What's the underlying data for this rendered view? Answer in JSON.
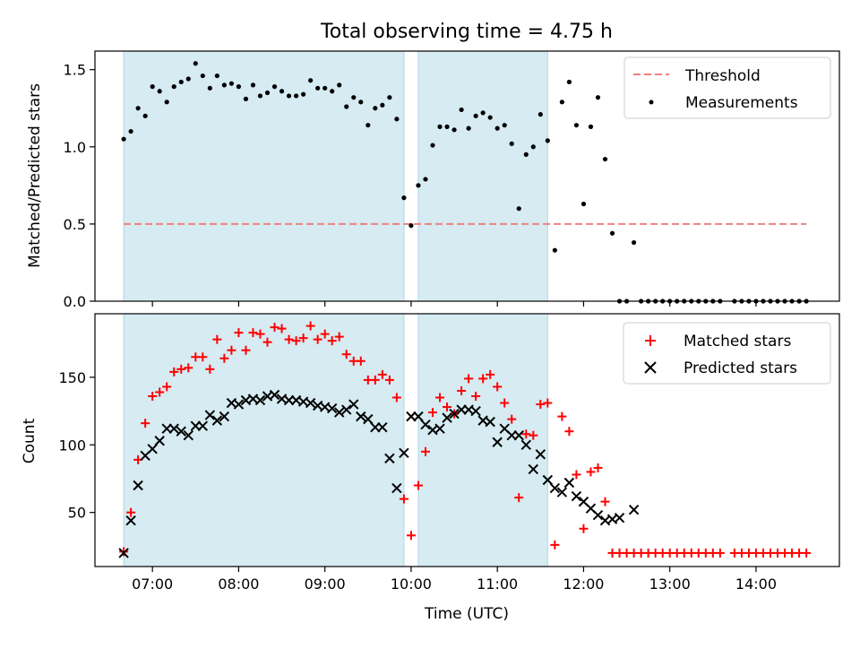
{
  "chart_data": [
    {
      "type": "scatter",
      "title": "Total observing time = 4.75 h",
      "ylabel": "Matched/Predicted stars",
      "xlim": [
        "06:20",
        "14:58"
      ],
      "ylim": [
        0,
        1.62
      ],
      "yticks": [
        0.0,
        0.5,
        1.0,
        1.5
      ],
      "ytick_labels": [
        "0.0",
        "0.5",
        "1.0",
        "1.5"
      ],
      "shaded_intervals": [
        [
          "06:40",
          "09:55"
        ],
        [
          "10:05",
          "11:35"
        ]
      ],
      "threshold": 0.5,
      "legend": [
        "Threshold",
        "Measurements"
      ],
      "legend_position": "upper right",
      "series": [
        {
          "name": "Measurements",
          "x": [
            "06:40",
            "06:45",
            "06:50",
            "06:55",
            "07:00",
            "07:05",
            "07:10",
            "07:15",
            "07:20",
            "07:25",
            "07:30",
            "07:35",
            "07:40",
            "07:45",
            "07:50",
            "07:55",
            "08:00",
            "08:05",
            "08:10",
            "08:15",
            "08:20",
            "08:25",
            "08:30",
            "08:35",
            "08:40",
            "08:45",
            "08:50",
            "08:55",
            "09:00",
            "09:05",
            "09:10",
            "09:15",
            "09:20",
            "09:25",
            "09:30",
            "09:35",
            "09:40",
            "09:45",
            "09:50",
            "09:55",
            "10:00",
            "10:05",
            "10:10",
            "10:15",
            "10:20",
            "10:25",
            "10:30",
            "10:35",
            "10:40",
            "10:45",
            "10:50",
            "10:55",
            "11:00",
            "11:05",
            "11:10",
            "11:15",
            "11:20",
            "11:25",
            "11:30",
            "11:35",
            "11:40",
            "11:45",
            "11:50",
            "11:55",
            "12:00",
            "12:05",
            "12:10",
            "12:15",
            "12:20",
            "12:25",
            "12:30",
            "12:35",
            "12:40",
            "12:45",
            "12:50",
            "12:55",
            "13:00",
            "13:05",
            "13:10",
            "13:15",
            "13:20",
            "13:25",
            "13:30",
            "13:35",
            "13:45",
            "13:50",
            "13:55",
            "14:00",
            "14:05",
            "14:10",
            "14:15",
            "14:20",
            "14:25",
            "14:30",
            "14:35"
          ],
          "y": [
            1.05,
            1.1,
            1.25,
            1.2,
            1.39,
            1.36,
            1.29,
            1.39,
            1.42,
            1.44,
            1.54,
            1.46,
            1.38,
            1.46,
            1.4,
            1.41,
            1.39,
            1.31,
            1.4,
            1.33,
            1.35,
            1.39,
            1.36,
            1.33,
            1.33,
            1.34,
            1.43,
            1.38,
            1.38,
            1.36,
            1.4,
            1.26,
            1.32,
            1.29,
            1.14,
            1.25,
            1.27,
            1.32,
            1.18,
            0.67,
            0.49,
            0.75,
            0.79,
            1.01,
            1.13,
            1.13,
            1.11,
            1.24,
            1.12,
            1.2,
            1.22,
            1.19,
            1.12,
            1.14,
            1.02,
            0.6,
            0.95,
            1.0,
            1.21,
            1.04,
            0.33,
            1.29,
            1.42,
            1.14,
            0.63,
            1.13,
            1.32,
            0.92,
            0.44,
            0.0,
            0.0,
            0.38,
            0.0,
            0.0,
            0.0,
            0.0,
            0.0,
            0.0,
            0.0,
            0.0,
            0.0,
            0.0,
            0.0,
            0.0,
            0.0,
            0.0,
            0.0,
            0.0,
            0.0,
            0.0,
            0.0,
            0.0,
            0.0,
            0.0,
            0.0
          ]
        }
      ]
    },
    {
      "type": "scatter",
      "xlabel": "Time (UTC)",
      "ylabel": "Count",
      "xlim": [
        "06:20",
        "14:58"
      ],
      "ylim": [
        10,
        197
      ],
      "yticks": [
        50,
        100,
        150
      ],
      "ytick_labels": [
        "50",
        "100",
        "150"
      ],
      "xticks": [
        "07:00",
        "08:00",
        "09:00",
        "10:00",
        "11:00",
        "12:00",
        "13:00",
        "14:00"
      ],
      "shaded_intervals": [
        [
          "06:40",
          "09:55"
        ],
        [
          "10:05",
          "11:35"
        ]
      ],
      "legend": [
        "Matched stars",
        "Predicted stars"
      ],
      "legend_position": "upper right",
      "series": [
        {
          "name": "Matched stars",
          "x": [
            "06:40",
            "06:45",
            "06:50",
            "06:55",
            "07:00",
            "07:05",
            "07:10",
            "07:15",
            "07:20",
            "07:25",
            "07:30",
            "07:35",
            "07:40",
            "07:45",
            "07:50",
            "07:55",
            "08:00",
            "08:05",
            "08:10",
            "08:15",
            "08:20",
            "08:25",
            "08:30",
            "08:35",
            "08:40",
            "08:45",
            "08:50",
            "08:55",
            "09:00",
            "09:05",
            "09:10",
            "09:15",
            "09:20",
            "09:25",
            "09:30",
            "09:35",
            "09:40",
            "09:45",
            "09:50",
            "09:55",
            "10:00",
            "10:05",
            "10:10",
            "10:15",
            "10:20",
            "10:25",
            "10:30",
            "10:35",
            "10:40",
            "10:45",
            "10:50",
            "10:55",
            "11:00",
            "11:05",
            "11:10",
            "11:15",
            "11:20",
            "11:25",
            "11:30",
            "11:35",
            "11:40",
            "11:45",
            "11:50",
            "11:55",
            "12:00",
            "12:05",
            "12:10",
            "12:15",
            "12:20",
            "12:25",
            "12:30",
            "12:35",
            "12:40",
            "12:45",
            "12:50",
            "12:55",
            "13:00",
            "13:05",
            "13:10",
            "13:15",
            "13:20",
            "13:25",
            "13:30",
            "13:35",
            "13:45",
            "13:50",
            "13:55",
            "14:00",
            "14:05",
            "14:10",
            "14:15",
            "14:20",
            "14:25",
            "14:30",
            "14:35"
          ],
          "y": [
            21,
            50,
            89,
            116,
            136,
            139,
            143,
            154,
            156,
            157,
            165,
            165,
            156,
            178,
            164,
            170,
            183,
            170,
            183,
            182,
            176,
            187,
            186,
            178,
            177,
            179,
            188,
            178,
            182,
            177,
            180,
            167,
            162,
            162,
            148,
            148,
            152,
            148,
            135,
            60,
            33,
            70,
            95,
            124,
            135,
            128,
            123,
            140,
            149,
            136,
            149,
            152,
            143,
            131,
            119,
            61,
            108,
            107,
            130,
            131,
            26,
            121,
            110,
            78,
            38,
            80,
            83,
            58,
            20,
            20,
            20,
            20,
            20,
            20,
            20,
            20,
            20,
            20,
            20,
            20,
            20,
            20,
            20,
            20,
            20,
            20,
            20,
            20,
            20,
            20,
            20,
            20,
            20,
            20,
            20
          ]
        },
        {
          "name": "Predicted stars",
          "x": [
            "06:40",
            "06:45",
            "06:50",
            "06:55",
            "07:00",
            "07:05",
            "07:10",
            "07:15",
            "07:20",
            "07:25",
            "07:30",
            "07:35",
            "07:40",
            "07:45",
            "07:50",
            "07:55",
            "08:00",
            "08:05",
            "08:10",
            "08:15",
            "08:20",
            "08:25",
            "08:30",
            "08:35",
            "08:40",
            "08:45",
            "08:50",
            "08:55",
            "09:00",
            "09:05",
            "09:10",
            "09:15",
            "09:20",
            "09:25",
            "09:30",
            "09:35",
            "09:40",
            "09:45",
            "09:50",
            "09:55",
            "10:00",
            "10:05",
            "10:10",
            "10:15",
            "10:20",
            "10:25",
            "10:30",
            "10:35",
            "10:40",
            "10:45",
            "10:50",
            "10:55",
            "11:00",
            "11:05",
            "11:10",
            "11:15",
            "11:20",
            "11:25",
            "11:30",
            "11:35",
            "11:40",
            "11:45",
            "11:50",
            "11:55",
            "12:00",
            "12:05",
            "12:10",
            "12:15",
            "12:20",
            "12:25",
            "12:35"
          ],
          "y": [
            20,
            44,
            70,
            92,
            97,
            103,
            112,
            112,
            110,
            107,
            114,
            114,
            122,
            118,
            121,
            131,
            130,
            133,
            134,
            133,
            136,
            137,
            134,
            133,
            133,
            132,
            131,
            129,
            128,
            127,
            124,
            126,
            130,
            121,
            119,
            113,
            113,
            90,
            68,
            94,
            121,
            121,
            115,
            111,
            112,
            120,
            123,
            126,
            126,
            125,
            118,
            117,
            102,
            112,
            107,
            107,
            100,
            82,
            93,
            74,
            68,
            65,
            72,
            62,
            58,
            53,
            48,
            44,
            45,
            46,
            52
          ]
        }
      ]
    }
  ]
}
